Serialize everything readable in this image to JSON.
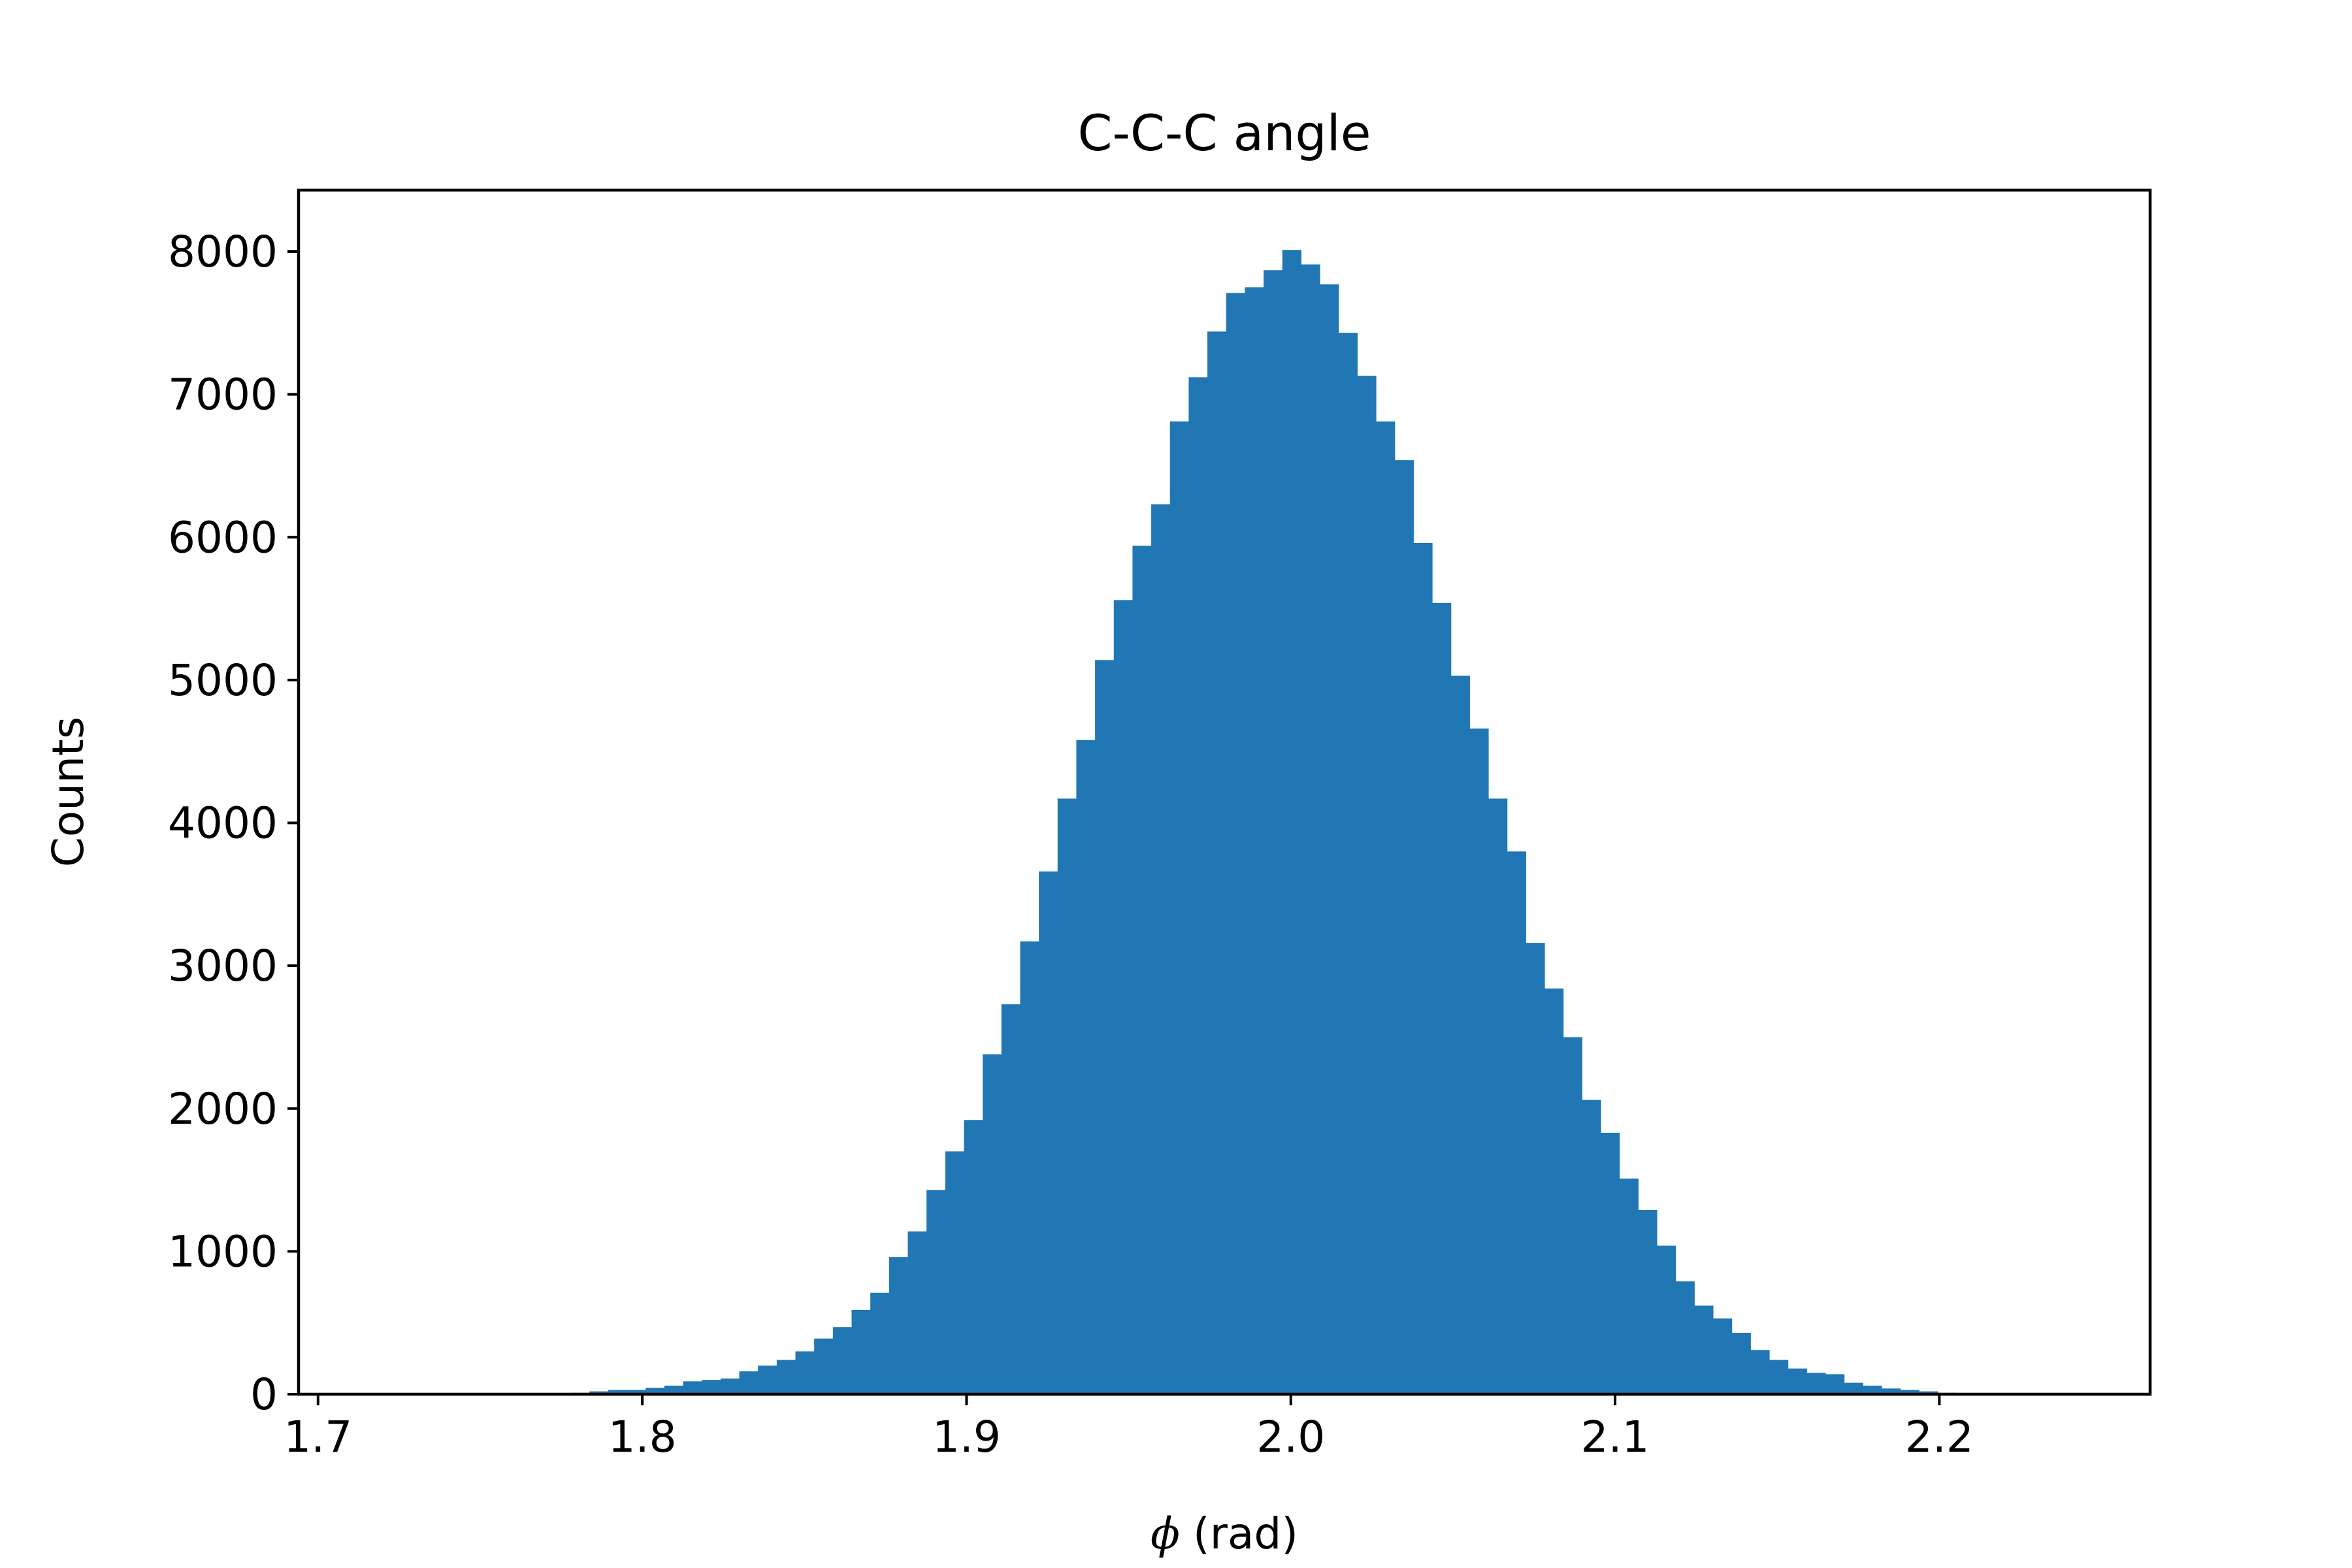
{
  "chart_data": {
    "type": "bar",
    "title": "C-C-C angle",
    "xlabel_symbol": "ϕ",
    "xlabel": "(rad)",
    "ylabel": "Counts",
    "xlim": [
      1.694,
      2.265
    ],
    "ylim": [
      0,
      8430
    ],
    "xticks": [
      1.7,
      1.8,
      1.9,
      2.0,
      2.1,
      2.2
    ],
    "xtick_labels": [
      "1.7",
      "1.8",
      "1.9",
      "2.0",
      "2.1",
      "2.2"
    ],
    "yticks": [
      0,
      1000,
      2000,
      3000,
      4000,
      5000,
      6000,
      7000,
      8000
    ],
    "ytick_labels": [
      "0",
      "1000",
      "2000",
      "3000",
      "4000",
      "5000",
      "6000",
      "7000",
      "8000"
    ],
    "grid": false,
    "bar_color": "#2077b4",
    "bins": {
      "start": 1.6913,
      "width": 0.005775,
      "counts": [
        0,
        0,
        0,
        0,
        0,
        0,
        0,
        0,
        0,
        0,
        0,
        0,
        0,
        0,
        5,
        10,
        20,
        30,
        30,
        45,
        60,
        90,
        100,
        110,
        160,
        200,
        240,
        300,
        390,
        470,
        590,
        710,
        960,
        1140,
        1430,
        1700,
        1920,
        2380,
        2730,
        3170,
        3660,
        4170,
        4580,
        5140,
        5560,
        5940,
        6230,
        6810,
        7120,
        7440,
        7710,
        7750,
        7870,
        8010,
        7910,
        7770,
        7430,
        7130,
        6810,
        6540,
        5960,
        5540,
        5030,
        4660,
        4170,
        3800,
        3160,
        2840,
        2500,
        2060,
        1830,
        1510,
        1290,
        1040,
        790,
        620,
        530,
        430,
        310,
        240,
        180,
        150,
        140,
        80,
        60,
        40,
        30,
        20,
        10
      ]
    }
  }
}
